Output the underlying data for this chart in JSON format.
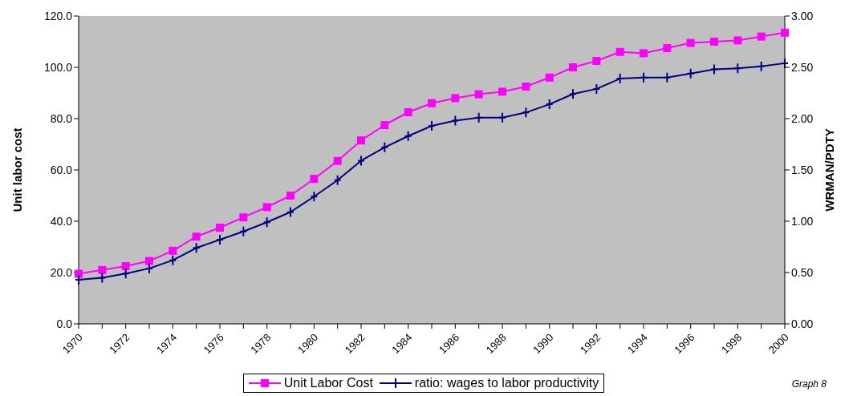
{
  "chart_data": {
    "type": "line",
    "categories": [
      "1970",
      null,
      "1972",
      null,
      "1974",
      null,
      "1976",
      null,
      "1978",
      null,
      "1980",
      null,
      "1982",
      null,
      "1984",
      null,
      "1986",
      null,
      "1988",
      null,
      "1990",
      null,
      "1992",
      null,
      "1994",
      null,
      "1996",
      null,
      "1998",
      null,
      "2000"
    ],
    "series": [
      {
        "name": "Unit Labor Cost",
        "color": "#ff00ff",
        "marker": "square",
        "values": [
          19.5,
          21,
          22.5,
          24.5,
          28.5,
          34,
          37.5,
          41.5,
          45.5,
          50,
          56.5,
          63.5,
          71.5,
          77.5,
          82.5,
          86,
          88,
          89.5,
          90.5,
          92.5,
          96,
          100,
          102.5,
          106,
          105.5,
          107.5,
          109.5,
          110,
          110.5,
          112,
          113.5
        ]
      },
      {
        "name": "ratio: wages to labor productivity",
        "color": "#000080",
        "marker": "cross",
        "axis": "y2",
        "values": [
          0.43,
          0.45,
          0.49,
          0.54,
          0.62,
          0.74,
          0.82,
          0.9,
          0.99,
          1.09,
          1.24,
          1.4,
          1.59,
          1.72,
          1.83,
          1.93,
          1.98,
          2.01,
          2.01,
          2.06,
          2.14,
          2.24,
          2.29,
          2.39,
          2.4,
          2.4,
          2.44,
          2.48,
          2.49,
          2.51,
          2.54
        ]
      }
    ],
    "ylabel": "Unit labor cost",
    "y2label": "WRMAN/PDTY",
    "ylim": [
      0,
      120
    ],
    "yticks": [
      {
        "value": 0,
        "label": "0.0"
      },
      {
        "value": 20,
        "label": "20.0"
      },
      {
        "value": 40,
        "label": "40.0"
      },
      {
        "value": 60,
        "label": "60.0"
      },
      {
        "value": 80,
        "label": "80.0"
      },
      {
        "value": 100,
        "label": "100.0"
      },
      {
        "value": 120,
        "label": "120.0"
      }
    ],
    "y2lim": [
      0,
      3
    ],
    "y2ticks": [
      {
        "value": 0,
        "label": "0.00"
      },
      {
        "value": 0.5,
        "label": "0.50"
      },
      {
        "value": 1,
        "label": "1.00"
      },
      {
        "value": 1.5,
        "label": "1.50"
      },
      {
        "value": 2,
        "label": "2.00"
      },
      {
        "value": 2.5,
        "label": "2.50"
      },
      {
        "value": 3,
        "label": "3.00"
      }
    ],
    "legend": "bottom",
    "annotations": [
      "Graph 8"
    ]
  }
}
